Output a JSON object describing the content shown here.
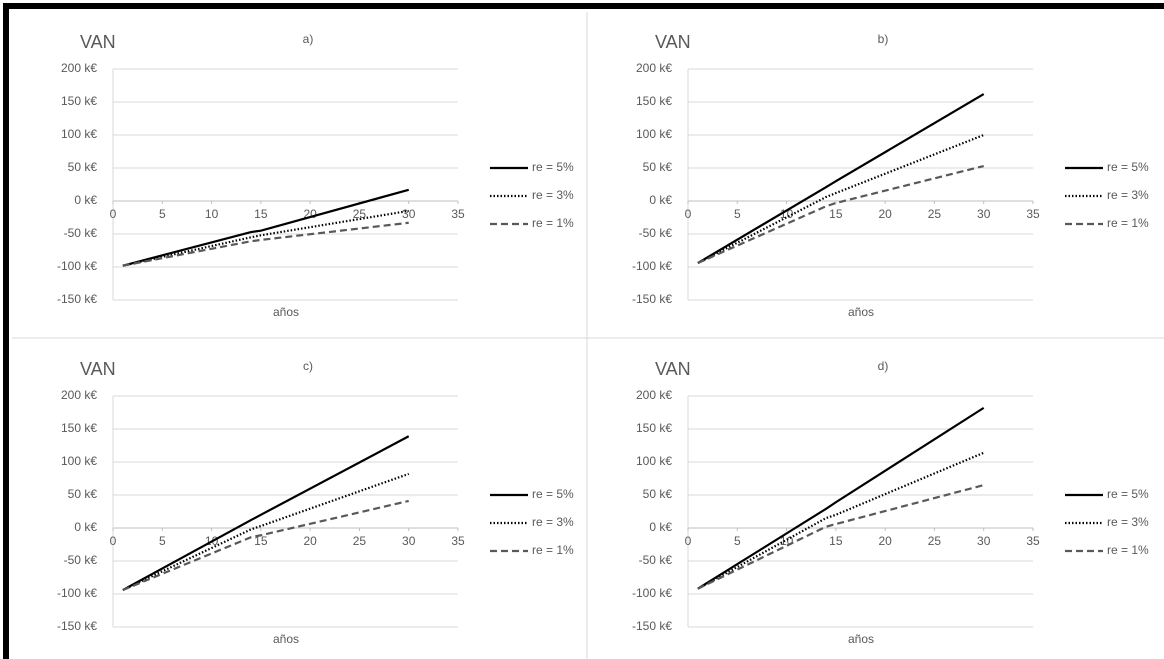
{
  "chart_data": [
    {
      "type": "line",
      "title": "a)",
      "y_label": "VAN",
      "x_label": "años",
      "x": [
        1,
        14,
        15,
        30
      ],
      "series": [
        {
          "name": "re = 5%",
          "color": "#000000",
          "line_style": "solid",
          "values": [
            -98,
            -47,
            -45,
            17
          ]
        },
        {
          "name": "re = 3%",
          "color": "#000000",
          "line_style": "dotted",
          "values": [
            -98,
            -55,
            -52,
            -15
          ]
        },
        {
          "name": "re = 1%",
          "color": "#595959",
          "line_style": "dashed",
          "values": [
            -98,
            -61,
            -59,
            -33
          ]
        }
      ],
      "xlim": [
        0,
        35
      ],
      "xticks": [
        0,
        5,
        10,
        15,
        20,
        25,
        30,
        35
      ],
      "ylim": [
        -150,
        200
      ],
      "yticks": [
        {
          "value": -150,
          "label": "-150 k€"
        },
        {
          "value": -100,
          "label": "-100 k€"
        },
        {
          "value": -50,
          "label": "-50 k€"
        },
        {
          "value": 0,
          "label": "0 k€"
        },
        {
          "value": 50,
          "label": "50 k€"
        },
        {
          "value": 100,
          "label": "100 k€"
        },
        {
          "value": 150,
          "label": "150 k€"
        },
        {
          "value": 200,
          "label": "200 k€"
        }
      ],
      "grid": true,
      "legend": "right"
    },
    {
      "type": "line",
      "title": "b)",
      "y_label": "VAN",
      "x_label": "años",
      "x": [
        1,
        14,
        15,
        30
      ],
      "series": [
        {
          "name": "re = 5%",
          "color": "#000000",
          "line_style": "solid",
          "values": [
            -94,
            21,
            30,
            162
          ]
        },
        {
          "name": "re = 3%",
          "color": "#000000",
          "line_style": "dotted",
          "values": [
            -94,
            6,
            12,
            100
          ]
        },
        {
          "name": "re = 1%",
          "color": "#595959",
          "line_style": "dashed",
          "values": [
            -94,
            -8,
            -3,
            53
          ]
        }
      ],
      "xlim": [
        0,
        35
      ],
      "xticks": [
        0,
        5,
        10,
        15,
        20,
        25,
        30,
        35
      ],
      "ylim": [
        -150,
        200
      ],
      "yticks": [
        {
          "value": -150,
          "label": "-150 k€"
        },
        {
          "value": -100,
          "label": "-100 k€"
        },
        {
          "value": -50,
          "label": "-50 k€"
        },
        {
          "value": 0,
          "label": "0 k€"
        },
        {
          "value": 50,
          "label": "50 k€"
        },
        {
          "value": 100,
          "label": "100 k€"
        },
        {
          "value": 150,
          "label": "150 k€"
        },
        {
          "value": 200,
          "label": "200 k€"
        }
      ],
      "grid": true,
      "legend": "right"
    },
    {
      "type": "line",
      "title": "c)",
      "y_label": "VAN",
      "x_label": "años",
      "x": [
        1,
        14,
        15,
        30
      ],
      "series": [
        {
          "name": "re = 5%",
          "color": "#000000",
          "line_style": "solid",
          "values": [
            -94,
            12,
            20,
            139
          ]
        },
        {
          "name": "re = 3%",
          "color": "#000000",
          "line_style": "dotted",
          "values": [
            -94,
            -2,
            3,
            82
          ]
        },
        {
          "name": "re = 1%",
          "color": "#595959",
          "line_style": "dashed",
          "values": [
            -94,
            -14,
            -11,
            41
          ]
        }
      ],
      "xlim": [
        0,
        35
      ],
      "xticks": [
        0,
        5,
        10,
        15,
        20,
        25,
        30,
        35
      ],
      "ylim": [
        -150,
        200
      ],
      "yticks": [
        {
          "value": -150,
          "label": "-150 k€"
        },
        {
          "value": -100,
          "label": "-100 k€"
        },
        {
          "value": -50,
          "label": "-50 k€"
        },
        {
          "value": 0,
          "label": "0 k€"
        },
        {
          "value": 50,
          "label": "50 k€"
        },
        {
          "value": 100,
          "label": "100 k€"
        },
        {
          "value": 150,
          "label": "150 k€"
        },
        {
          "value": 200,
          "label": "200 k€"
        }
      ],
      "grid": true,
      "legend": "right"
    },
    {
      "type": "line",
      "title": "d)",
      "y_label": "VAN",
      "x_label": "años",
      "x": [
        1,
        14,
        15,
        30
      ],
      "series": [
        {
          "name": "re = 5%",
          "color": "#000000",
          "line_style": "solid",
          "values": [
            -92,
            29,
            39,
            182
          ]
        },
        {
          "name": "re = 3%",
          "color": "#000000",
          "line_style": "dotted",
          "values": [
            -92,
            15,
            20,
            114
          ]
        },
        {
          "name": "re = 1%",
          "color": "#595959",
          "line_style": "dashed",
          "values": [
            -92,
            2,
            6,
            65
          ]
        }
      ],
      "xlim": [
        0,
        35
      ],
      "xticks": [
        0,
        5,
        10,
        15,
        20,
        25,
        30,
        35
      ],
      "ylim": [
        -150,
        200
      ],
      "yticks": [
        {
          "value": -150,
          "label": "-150 k€"
        },
        {
          "value": -100,
          "label": "-100 k€"
        },
        {
          "value": -50,
          "label": "-50 k€"
        },
        {
          "value": 0,
          "label": "0 k€"
        },
        {
          "value": 50,
          "label": "50 k€"
        },
        {
          "value": 100,
          "label": "100 k€"
        },
        {
          "value": 150,
          "label": "150 k€"
        },
        {
          "value": 200,
          "label": "200 k€"
        }
      ],
      "grid": true,
      "legend": "right"
    }
  ]
}
